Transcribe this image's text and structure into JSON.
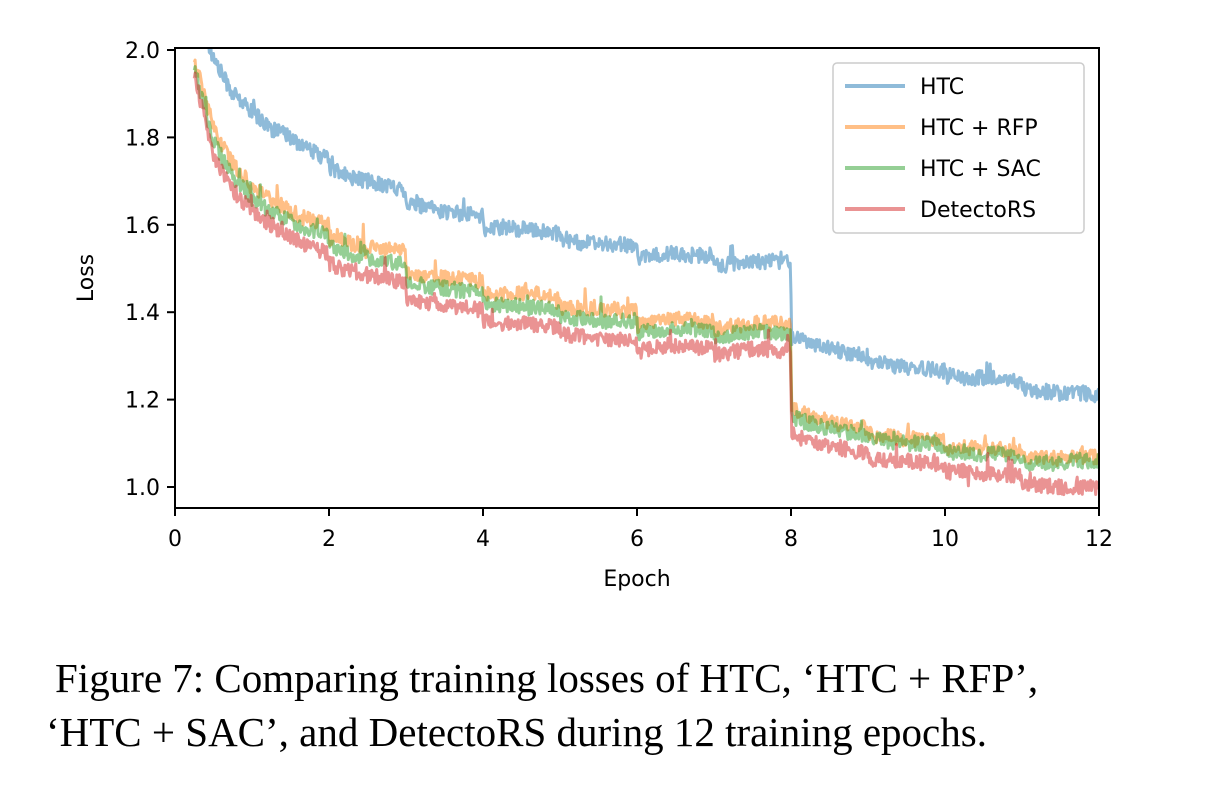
{
  "chart_data": {
    "type": "line",
    "xlabel": "Epoch",
    "ylabel": "Loss",
    "xlim": [
      0,
      12
    ],
    "ylim": [
      0.95,
      2.0
    ],
    "xticks": [
      0,
      2,
      4,
      6,
      8,
      10,
      12
    ],
    "yticks": [
      1.0,
      1.2,
      1.4,
      1.6,
      1.8,
      2.0
    ],
    "xtick_labels": [
      "0",
      "2",
      "4",
      "6",
      "8",
      "10",
      "12"
    ],
    "ytick_labels": [
      "1.0",
      "1.2",
      "1.4",
      "1.6",
      "1.8",
      "2.0"
    ],
    "grid": false,
    "legend_position": "top-right",
    "x": [
      0.25,
      0.5,
      0.75,
      1.0,
      1.25,
      1.5,
      1.75,
      1.99,
      2.01,
      2.25,
      2.5,
      2.75,
      2.99,
      3.01,
      3.25,
      3.5,
      3.75,
      3.99,
      4.01,
      4.25,
      4.5,
      4.75,
      4.99,
      5.01,
      5.25,
      5.5,
      5.75,
      5.99,
      6.01,
      6.25,
      6.5,
      6.75,
      6.99,
      7.01,
      7.25,
      7.5,
      7.75,
      7.99,
      8.01,
      8.25,
      8.5,
      8.75,
      8.99,
      9.01,
      9.25,
      9.5,
      9.75,
      9.99,
      10.01,
      10.25,
      10.5,
      10.75,
      10.99,
      11.01,
      11.25,
      11.5,
      11.75,
      12.0
    ],
    "series": [
      {
        "name": "HTC",
        "color": "#1f77b4",
        "values": [
          2.1,
          1.98,
          1.9,
          1.86,
          1.82,
          1.8,
          1.77,
          1.75,
          1.73,
          1.71,
          1.7,
          1.69,
          1.68,
          1.65,
          1.64,
          1.63,
          1.625,
          1.62,
          1.59,
          1.595,
          1.59,
          1.585,
          1.58,
          1.565,
          1.56,
          1.555,
          1.555,
          1.55,
          1.525,
          1.53,
          1.535,
          1.53,
          1.53,
          1.505,
          1.51,
          1.515,
          1.515,
          1.52,
          1.35,
          1.33,
          1.32,
          1.305,
          1.3,
          1.285,
          1.28,
          1.275,
          1.27,
          1.265,
          1.255,
          1.25,
          1.25,
          1.245,
          1.24,
          1.225,
          1.22,
          1.215,
          1.215,
          1.21
        ]
      },
      {
        "name": "HTC + RFP",
        "color": "#ff7f0e",
        "values": [
          1.98,
          1.82,
          1.74,
          1.69,
          1.66,
          1.63,
          1.61,
          1.6,
          1.57,
          1.56,
          1.55,
          1.545,
          1.54,
          1.49,
          1.485,
          1.48,
          1.475,
          1.47,
          1.44,
          1.44,
          1.445,
          1.44,
          1.435,
          1.41,
          1.41,
          1.41,
          1.405,
          1.405,
          1.37,
          1.38,
          1.385,
          1.38,
          1.38,
          1.36,
          1.37,
          1.375,
          1.375,
          1.37,
          1.18,
          1.16,
          1.15,
          1.14,
          1.135,
          1.12,
          1.115,
          1.11,
          1.11,
          1.105,
          1.09,
          1.09,
          1.085,
          1.085,
          1.08,
          1.065,
          1.065,
          1.065,
          1.07,
          1.07
        ]
      },
      {
        "name": "HTC + SAC",
        "color": "#2ca02c",
        "values": [
          1.96,
          1.79,
          1.71,
          1.66,
          1.63,
          1.61,
          1.59,
          1.575,
          1.55,
          1.535,
          1.525,
          1.515,
          1.51,
          1.47,
          1.46,
          1.455,
          1.45,
          1.445,
          1.42,
          1.415,
          1.415,
          1.41,
          1.405,
          1.385,
          1.385,
          1.38,
          1.38,
          1.38,
          1.35,
          1.36,
          1.365,
          1.36,
          1.36,
          1.34,
          1.35,
          1.355,
          1.355,
          1.35,
          1.16,
          1.145,
          1.135,
          1.125,
          1.12,
          1.11,
          1.105,
          1.1,
          1.1,
          1.095,
          1.08,
          1.08,
          1.075,
          1.075,
          1.07,
          1.055,
          1.055,
          1.055,
          1.06,
          1.06
        ]
      },
      {
        "name": "DetectoRS",
        "color": "#d62728",
        "values": [
          1.94,
          1.76,
          1.68,
          1.63,
          1.6,
          1.57,
          1.55,
          1.535,
          1.51,
          1.495,
          1.485,
          1.475,
          1.47,
          1.43,
          1.42,
          1.415,
          1.41,
          1.405,
          1.38,
          1.375,
          1.375,
          1.37,
          1.365,
          1.35,
          1.345,
          1.34,
          1.34,
          1.335,
          1.31,
          1.32,
          1.325,
          1.32,
          1.32,
          1.3,
          1.31,
          1.315,
          1.315,
          1.31,
          1.12,
          1.105,
          1.095,
          1.085,
          1.08,
          1.065,
          1.06,
          1.06,
          1.055,
          1.05,
          1.035,
          1.035,
          1.03,
          1.03,
          1.025,
          1.005,
          1.005,
          1.0,
          1.0,
          1.0
        ]
      }
    ]
  },
  "caption": {
    "line1": "Figure 7: Comparing training losses of HTC, ‘HTC + RFP’,",
    "line2": "‘HTC + SAC’, and DetectoRS during 12 training epochs."
  }
}
